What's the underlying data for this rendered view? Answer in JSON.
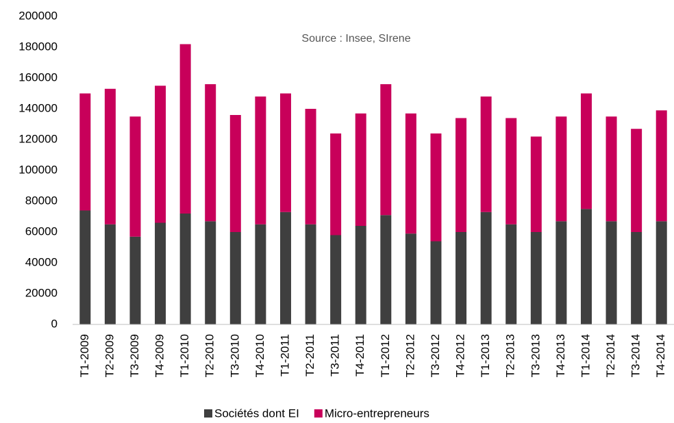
{
  "chart_data": {
    "type": "stacked_bar",
    "annotation": "Source : Insee, SIrene",
    "categories": [
      "T1-2009",
      "T2-2009",
      "T3-2009",
      "T4-2009",
      "T1-2010",
      "T2-2010",
      "T3-2010",
      "T4-2010",
      "T1-2011",
      "T2-2011",
      "T3-2011",
      "T4-2011",
      "T1-2012",
      "T2-2012",
      "T3-2012",
      "T4-2012",
      "T1-2013",
      "T2-2013",
      "T3-2013",
      "T4-2013",
      "T1-2014",
      "T2-2014",
      "T3-2014",
      "T4-2014"
    ],
    "series": [
      {
        "name": "Sociétés dont EI",
        "color": "#3f3f3f",
        "values": [
          74000,
          65000,
          57000,
          66000,
          72000,
          67000,
          60000,
          65000,
          73000,
          65000,
          58000,
          64000,
          71000,
          59000,
          54000,
          60000,
          73000,
          65000,
          60000,
          67000,
          75000,
          67000,
          60000,
          67000
        ]
      },
      {
        "name": "Micro-entrepreneurs",
        "color": "#c8005a",
        "values": [
          76000,
          88000,
          78000,
          89000,
          110000,
          89000,
          76000,
          83000,
          77000,
          75000,
          66000,
          73000,
          85000,
          78000,
          70000,
          74000,
          75000,
          69000,
          62000,
          68000,
          75000,
          68000,
          67000,
          72000
        ]
      }
    ],
    "ylim": [
      0,
      200000
    ],
    "yticks": [
      0,
      20000,
      40000,
      60000,
      80000,
      100000,
      120000,
      140000,
      160000,
      180000,
      200000
    ],
    "legend": "bottom"
  }
}
